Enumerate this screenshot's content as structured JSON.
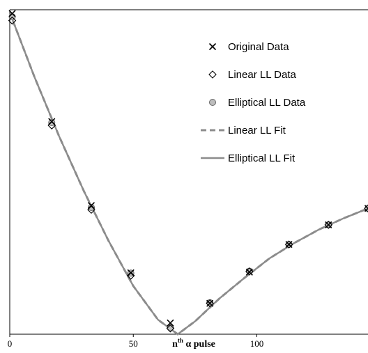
{
  "chart_data": {
    "type": "scatter",
    "xlabel": {
      "base": "n",
      "sup": "th",
      "rest": " α pulse"
    },
    "x_ticks": [
      0,
      50,
      100
    ],
    "xlim": [
      0,
      145
    ],
    "ylim": [
      0,
      1
    ],
    "grid": false,
    "legend_position": "top-right",
    "colors": {
      "original": "#000000",
      "linear_marker": "#000000",
      "elliptical_marker": "#666666",
      "elliptical_fill": "#bdbdbd",
      "fit": "#8c8c8c"
    },
    "series": [
      {
        "name": "Original Data",
        "marker": "x",
        "x": [
          1,
          17,
          33,
          49,
          65,
          81,
          97,
          113,
          129,
          145
        ],
        "y": [
          0.997,
          0.661,
          0.4,
          0.191,
          0.035,
          0.096,
          0.193,
          0.279,
          0.34,
          0.391
        ]
      },
      {
        "name": "Linear LL Data",
        "marker": "diamond",
        "x": [
          1,
          17,
          33,
          49,
          65,
          81,
          97,
          113,
          129,
          145
        ],
        "y": [
          0.975,
          0.649,
          0.387,
          0.182,
          0.018,
          0.096,
          0.195,
          0.279,
          0.34,
          0.391
        ]
      },
      {
        "name": "Elliptical LL Data",
        "marker": "circle",
        "x": [
          1,
          17,
          33,
          49,
          65,
          81,
          97,
          113,
          129,
          145
        ],
        "y": [
          0.987,
          0.658,
          0.394,
          0.19,
          0.02,
          0.098,
          0.196,
          0.279,
          0.34,
          0.391
        ]
      },
      {
        "name": "Linear LL Fit",
        "line": "dashed",
        "x": [
          0,
          10,
          20,
          30,
          40,
          50,
          60,
          68,
          75,
          85,
          95,
          105,
          115,
          125,
          135,
          145
        ],
        "y": [
          1.0,
          0.8,
          0.615,
          0.445,
          0.29,
          0.15,
          0.045,
          0.0,
          0.04,
          0.112,
          0.175,
          0.235,
          0.283,
          0.325,
          0.36,
          0.391
        ]
      },
      {
        "name": "Elliptical LL Fit",
        "line": "solid",
        "x": [
          0,
          10,
          20,
          30,
          40,
          50,
          60,
          68,
          75,
          85,
          95,
          105,
          115,
          125,
          135,
          145
        ],
        "y": [
          1.0,
          0.8,
          0.615,
          0.445,
          0.29,
          0.15,
          0.045,
          0.0,
          0.04,
          0.112,
          0.175,
          0.235,
          0.283,
          0.325,
          0.36,
          0.391
        ]
      }
    ]
  }
}
